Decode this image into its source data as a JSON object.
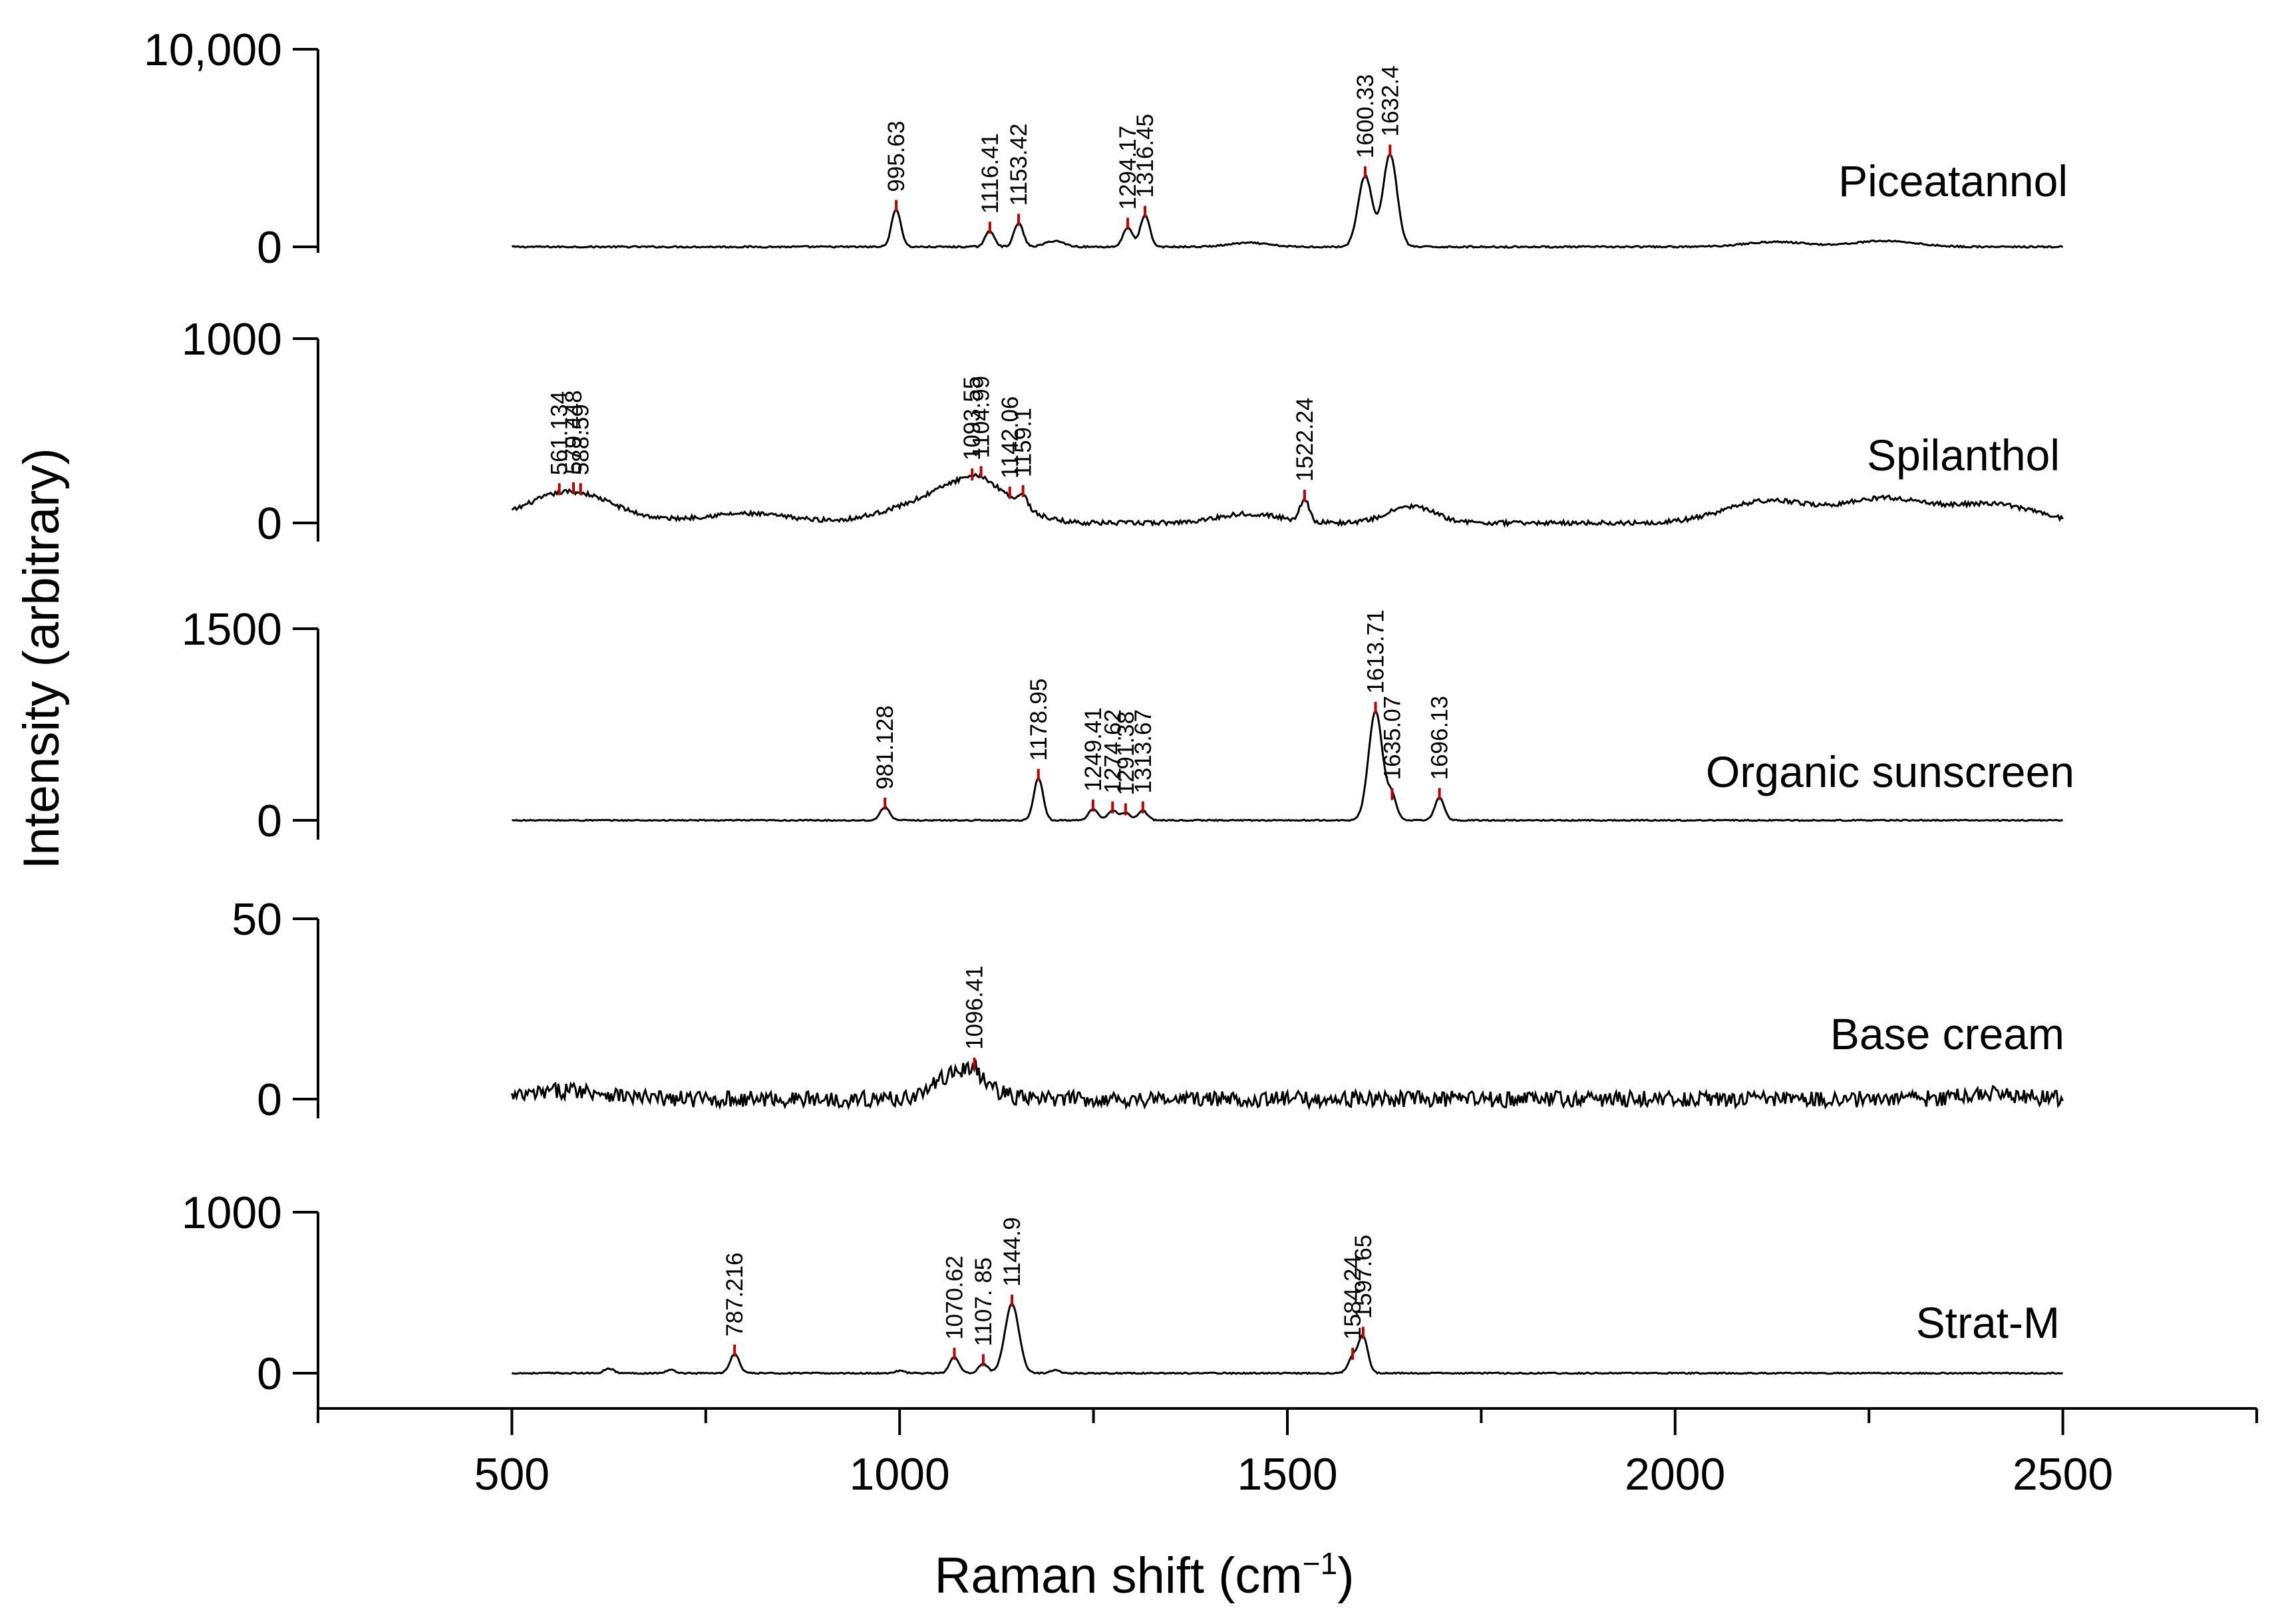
{
  "chart_data": {
    "type": "line",
    "layout": "stacked-panels",
    "xlabel": "Raman shift (cm",
    "xlabel_sup": "−1",
    "xlabel_tail": ")",
    "ylabel": "Intensity (arbitrary)",
    "xlim": [
      250,
      2750
    ],
    "x_ticks": [
      500,
      1000,
      1500,
      2000,
      2500
    ],
    "x_tick_labels": [
      "500",
      "1000",
      "1500",
      "2000",
      "2500"
    ],
    "x_data_range": [
      500,
      2500
    ],
    "line_color": "#000000",
    "peak_marker_color": "#c00000",
    "grid": false,
    "panels": [
      {
        "name": "Piceatannol",
        "y_ticks": [
          "10,000",
          "0"
        ],
        "y_tick_values": [
          10000,
          0
        ],
        "peaks": [
          {
            "x": 995.63,
            "label": "995.63",
            "h": 0.19
          },
          {
            "x": 1116.41,
            "label": "1116.41",
            "h": 0.08
          },
          {
            "x": 1153.42,
            "label": "1153.42",
            "h": 0.12
          },
          {
            "x": 1294.17,
            "label": "1294.17",
            "h": 0.1
          },
          {
            "x": 1316.45,
            "label": "1316.45",
            "h": 0.16
          },
          {
            "x": 1600.33,
            "label": "1600.33",
            "h": 0.36
          },
          {
            "x": 1632.4,
            "label": "1632.4",
            "h": 0.47
          }
        ],
        "bumps": [
          {
            "x": 1200,
            "h": 0.03,
            "w": 12
          },
          {
            "x": 1450,
            "h": 0.02,
            "w": 25
          },
          {
            "x": 2130,
            "h": 0.025,
            "w": 40
          },
          {
            "x": 2270,
            "h": 0.03,
            "w": 40
          }
        ],
        "baseline": [],
        "noise": 0.004
      },
      {
        "name": "Spilanthol",
        "y_ticks": [
          "1000",
          "0"
        ],
        "y_tick_values": [
          1000,
          0
        ],
        "peaks": [
          {
            "x": 561.134,
            "label": "561.134",
            "h": 0.0
          },
          {
            "x": 579.448,
            "label": "579.448",
            "h": 0.0
          },
          {
            "x": 588.59,
            "label": "588.59",
            "h": 0.0
          },
          {
            "x": 1093.55,
            "label": "1093.55",
            "h": 0.0
          },
          {
            "x": 1104.99,
            "label": "1104.99",
            "h": 0.02
          },
          {
            "x": 1142.06,
            "label": "1142.06",
            "h": 0.0
          },
          {
            "x": 1159.1,
            "label": "1159.1",
            "h": 0.06
          },
          {
            "x": 1522.24,
            "label": "1522.24",
            "h": 0.12
          }
        ],
        "bumps": [
          {
            "x": 575,
            "h": 0.17,
            "w": 55
          },
          {
            "x": 800,
            "h": 0.05,
            "w": 60
          },
          {
            "x": 1020,
            "h": 0.08,
            "w": 50
          },
          {
            "x": 1100,
            "h": 0.22,
            "w": 45
          },
          {
            "x": 1450,
            "h": 0.05,
            "w": 40
          },
          {
            "x": 1660,
            "h": 0.09,
            "w": 30
          },
          {
            "x": 2120,
            "h": 0.12,
            "w": 55
          },
          {
            "x": 2270,
            "h": 0.13,
            "w": 55
          },
          {
            "x": 2410,
            "h": 0.1,
            "w": 55
          }
        ],
        "baseline": [],
        "noise": 0.012
      },
      {
        "name": "Organic sunscreen",
        "y_ticks": [
          "1500",
          "0"
        ],
        "y_tick_values": [
          1500,
          0
        ],
        "peaks": [
          {
            "x": 981.128,
            "label": "981.128",
            "h": 0.07
          },
          {
            "x": 1178.95,
            "label": "1178.95",
            "h": 0.22
          },
          {
            "x": 1249.41,
            "label": "1249.41",
            "h": 0.06
          },
          {
            "x": 1274.62,
            "label": "1274.62",
            "h": 0.05
          },
          {
            "x": 1291.38,
            "label": "1291.38",
            "h": 0.04
          },
          {
            "x": 1313.67,
            "label": "1313.67",
            "h": 0.05
          },
          {
            "x": 1613.71,
            "label": "1613.71",
            "h": 0.57
          },
          {
            "x": 1635.07,
            "label": "1635.07",
            "h": 0.12
          },
          {
            "x": 1696.13,
            "label": "1696.13",
            "h": 0.12
          }
        ],
        "bumps": [],
        "baseline": [],
        "noise": 0.003
      },
      {
        "name": "Base cream",
        "y_ticks": [
          "50",
          "0"
        ],
        "y_tick_values": [
          50,
          0
        ],
        "peaks": [
          {
            "x": 1096.41,
            "label": "1096.41",
            "h": 0.04
          }
        ],
        "bumps": [
          {
            "x": 580,
            "h": 0.05,
            "w": 45
          },
          {
            "x": 1080,
            "h": 0.16,
            "w": 30
          },
          {
            "x": 2410,
            "h": 0.03,
            "w": 40
          }
        ],
        "baseline": [],
        "noise": 0.045
      },
      {
        "name": "Strat-M",
        "y_ticks": [
          "1000",
          "0"
        ],
        "y_tick_values": [
          1000,
          0
        ],
        "peaks": [
          {
            "x": 787.216,
            "label": "787.216",
            "h": 0.12
          },
          {
            "x": 1070.62,
            "label": "1070.62",
            "h": 0.1
          },
          {
            "x": 1107.85,
            "label": "1107. 85",
            "h": 0.06
          },
          {
            "x": 1144.9,
            "label": "1144.9",
            "h": 0.43
          },
          {
            "x": 1584.24,
            "label": "1584.24",
            "h": 0.1
          },
          {
            "x": 1597.65,
            "label": "1597.65",
            "h": 0.23
          }
        ],
        "bumps": [
          {
            "x": 625,
            "h": 0.03,
            "w": 6
          },
          {
            "x": 705,
            "h": 0.02,
            "w": 6
          },
          {
            "x": 1000,
            "h": 0.015,
            "w": 6
          },
          {
            "x": 1200,
            "h": 0.02,
            "w": 6
          }
        ],
        "baseline": [],
        "noise": 0.004
      }
    ]
  }
}
